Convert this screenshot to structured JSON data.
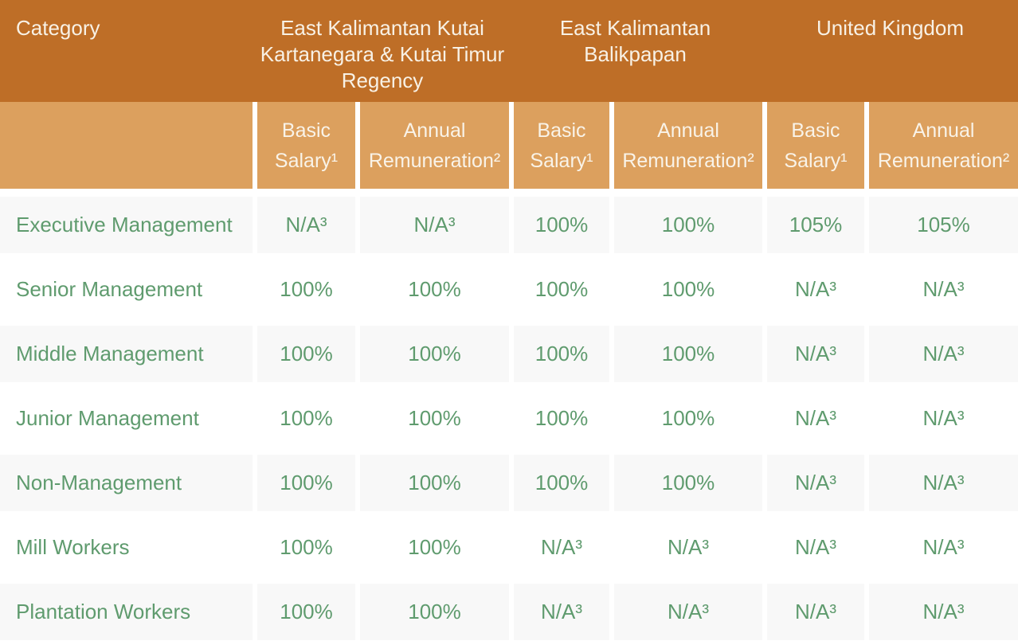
{
  "table": {
    "corner_label": "Category",
    "region_headers": [
      {
        "label": "East Kalimantan Kutai\nKartanegara & Kutai Timur\nRegency"
      },
      {
        "label": "East Kalimantan\nBalikpapan"
      },
      {
        "label": "United Kingdom"
      }
    ],
    "sub_headers": {
      "basic_salary": "Basic\nSalary¹",
      "annual_remuneration": "Annual\nRemuneration²"
    },
    "rows": [
      {
        "category": "Executive Management",
        "values": [
          "N/A³",
          "N/A³",
          "100%",
          "100%",
          "105%",
          "105%"
        ]
      },
      {
        "category": "Senior Management",
        "values": [
          "100%",
          "100%",
          "100%",
          "100%",
          "N/A³",
          "N/A³"
        ]
      },
      {
        "category": "Middle Management",
        "values": [
          "100%",
          "100%",
          "100%",
          "100%",
          "N/A³",
          "N/A³"
        ]
      },
      {
        "category": "Junior Management",
        "values": [
          "100%",
          "100%",
          "100%",
          "100%",
          "N/A³",
          "N/A³"
        ]
      },
      {
        "category": "Non-Management",
        "values": [
          "100%",
          "100%",
          "100%",
          "100%",
          "N/A³",
          "N/A³"
        ]
      },
      {
        "category": "Mill Workers",
        "values": [
          "100%",
          "100%",
          "N/A³",
          "N/A³",
          "N/A³",
          "N/A³"
        ]
      },
      {
        "category": "Plantation Workers",
        "values": [
          "100%",
          "100%",
          "N/A³",
          "N/A³",
          "N/A³",
          "N/A³"
        ]
      }
    ],
    "colors": {
      "header_primary": "#BE6E27",
      "header_secondary": "#DCA05E",
      "header_text": "#F8F1E5",
      "row_alt_background": "#F8F8F8",
      "value_text": "#5F9B6E"
    }
  }
}
